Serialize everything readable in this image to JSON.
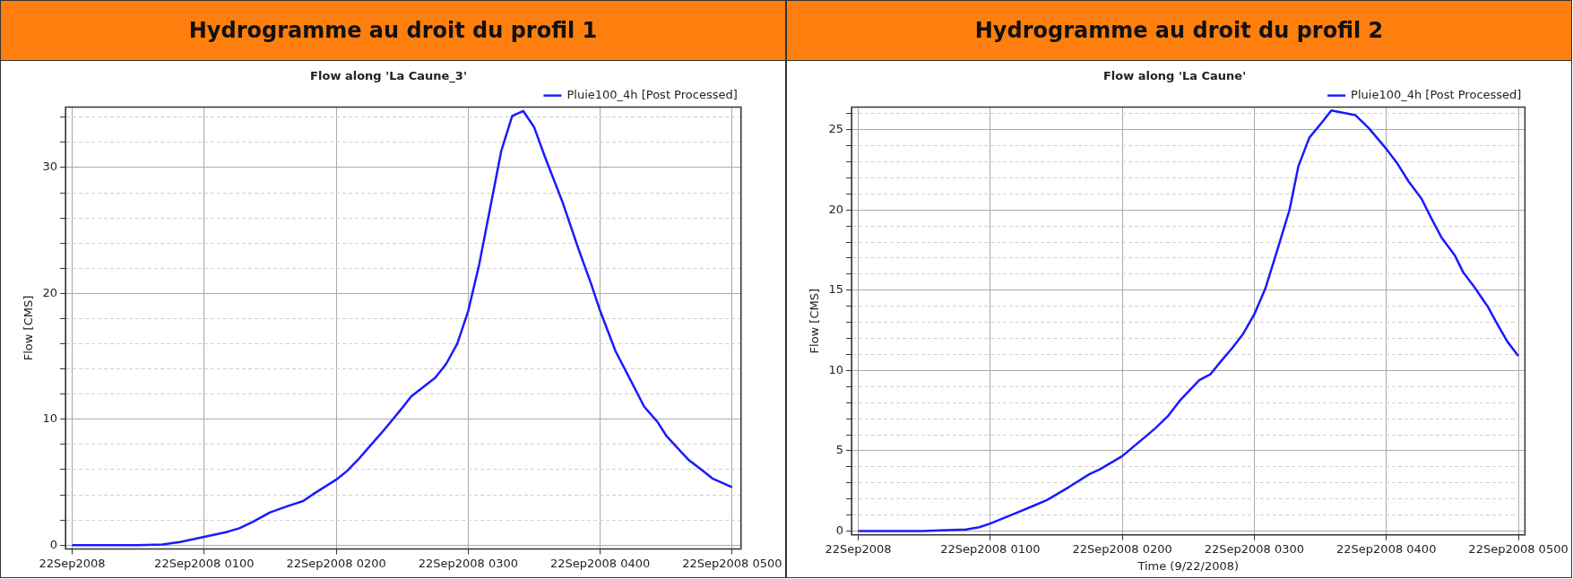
{
  "chart_data": [
    {
      "type": "line",
      "title": "Hydrogramme au droit du profil 1",
      "subtitle": "Flow along 'La Caune_3'",
      "ylabel": "Flow [CMS]",
      "legend": "top right",
      "grid": true,
      "marker": "none",
      "line_style": "solid",
      "xlim": [
        "2008-09-21T23:57",
        "2008-09-22T05:04"
      ],
      "xticks": [
        {
          "value": "2008-09-22T00:00",
          "label": "22Sep2008"
        },
        {
          "value": "2008-09-22T01:00",
          "label": "22Sep2008 0100"
        },
        {
          "value": "2008-09-22T02:00",
          "label": "22Sep2008 0200"
        },
        {
          "value": "2008-09-22T03:00",
          "label": "22Sep2008 0300"
        },
        {
          "value": "2008-09-22T04:00",
          "label": "22Sep2008 0400"
        },
        {
          "value": "2008-09-22T05:00",
          "label": "22Sep2008 0500"
        }
      ],
      "ylim": [
        -0.3,
        34.8
      ],
      "yticks": [
        0,
        {
          "value": 2,
          "label": null
        },
        {
          "value": 4,
          "label": null
        },
        {
          "value": 6,
          "label": null
        },
        {
          "value": 8,
          "label": null
        },
        10,
        {
          "value": 12,
          "label": null
        },
        {
          "value": 14,
          "label": null
        },
        {
          "value": 16,
          "label": null
        },
        {
          "value": 18,
          "label": null
        },
        20,
        {
          "value": 22,
          "label": null
        },
        {
          "value": 24,
          "label": null
        },
        {
          "value": 26,
          "label": null
        },
        {
          "value": 28,
          "label": null
        },
        30,
        {
          "value": 32,
          "label": null
        },
        {
          "value": 34,
          "label": null
        }
      ],
      "series": [
        {
          "name": "Pluie100_4h [Post Processed]",
          "color": "#1a1aff",
          "x": [
            "2008-09-22T00:00",
            "2008-09-22T00:30",
            "2008-09-22T00:41",
            "2008-09-22T00:49",
            "2008-09-22T01:00",
            "2008-09-22T01:10",
            "2008-09-22T01:16",
            "2008-09-22T01:22",
            "2008-09-22T01:30",
            "2008-09-22T01:38",
            "2008-09-22T01:45",
            "2008-09-22T01:50",
            "2008-09-22T02:00",
            "2008-09-22T02:05",
            "2008-09-22T02:10",
            "2008-09-22T02:16",
            "2008-09-22T02:22",
            "2008-09-22T02:30",
            "2008-09-22T02:34",
            "2008-09-22T02:45",
            "2008-09-22T02:50",
            "2008-09-22T02:55",
            "2008-09-22T03:00",
            "2008-09-22T03:05",
            "2008-09-22T03:10",
            "2008-09-22T03:15",
            "2008-09-22T03:20",
            "2008-09-22T03:25",
            "2008-09-22T03:30",
            "2008-09-22T03:35",
            "2008-09-22T03:43",
            "2008-09-22T03:50",
            "2008-09-22T03:56",
            "2008-09-22T04:00",
            "2008-09-22T04:07",
            "2008-09-22T04:15",
            "2008-09-22T04:20",
            "2008-09-22T04:26",
            "2008-09-22T04:30",
            "2008-09-22T04:40",
            "2008-09-22T04:46",
            "2008-09-22T04:51",
            "2008-09-22T05:00"
          ],
          "values": [
            0,
            0,
            0.05,
            0.24,
            0.66,
            1.03,
            1.34,
            1.84,
            2.6,
            3.1,
            3.5,
            4.1,
            5.2,
            5.9,
            6.8,
            8.0,
            9.2,
            10.9,
            11.8,
            13.3,
            14.4,
            16.0,
            18.6,
            22.3,
            26.8,
            31.3,
            34.1,
            34.5,
            33.2,
            30.8,
            27.2,
            23.6,
            20.7,
            18.6,
            15.4,
            12.7,
            11.0,
            9.8,
            8.7,
            6.8,
            6.0,
            5.3,
            4.6
          ]
        }
      ]
    },
    {
      "type": "line",
      "title": "Hydrogramme au droit du profil 2",
      "subtitle": "Flow along 'La Caune'",
      "xlabel": "Time (9/22/2008)",
      "ylabel": "Flow [CMS]",
      "legend": "top right",
      "grid": true,
      "marker": "none",
      "line_style": "solid",
      "xlim": [
        "2008-09-21T23:57",
        "2008-09-22T05:03"
      ],
      "xticks": [
        {
          "value": "2008-09-22T00:00",
          "label": "22Sep2008"
        },
        {
          "value": "2008-09-22T01:00",
          "label": "22Sep2008 0100"
        },
        {
          "value": "2008-09-22T02:00",
          "label": "22Sep2008 0200"
        },
        {
          "value": "2008-09-22T03:00",
          "label": "22Sep2008 0300"
        },
        {
          "value": "2008-09-22T04:00",
          "label": "22Sep2008 0400"
        },
        {
          "value": "2008-09-22T05:00",
          "label": "22Sep2008 0500"
        }
      ],
      "ylim": [
        -0.24,
        26.4
      ],
      "yticks": [
        0,
        {
          "value": 1,
          "label": null
        },
        {
          "value": 2,
          "label": null
        },
        {
          "value": 3,
          "label": null
        },
        {
          "value": 4,
          "label": null
        },
        5,
        {
          "value": 6,
          "label": null
        },
        {
          "value": 7,
          "label": null
        },
        {
          "value": 8,
          "label": null
        },
        {
          "value": 9,
          "label": null
        },
        10,
        {
          "value": 11,
          "label": null
        },
        {
          "value": 12,
          "label": null
        },
        {
          "value": 13,
          "label": null
        },
        {
          "value": 14,
          "label": null
        },
        15,
        {
          "value": 16,
          "label": null
        },
        {
          "value": 17,
          "label": null
        },
        {
          "value": 18,
          "label": null
        },
        {
          "value": 19,
          "label": null
        },
        20,
        {
          "value": 21,
          "label": null
        },
        {
          "value": 22,
          "label": null
        },
        {
          "value": 23,
          "label": null
        },
        {
          "value": 24,
          "label": null
        },
        25,
        {
          "value": 26,
          "label": null
        }
      ],
      "series": [
        {
          "name": "Pluie100_4h [Post Processed]",
          "color": "#1a1aff",
          "x": [
            "2008-09-22T00:00",
            "2008-09-22T00:29",
            "2008-09-22T00:49",
            "2008-09-22T00:55",
            "2008-09-22T01:00",
            "2008-09-22T01:11",
            "2008-09-22T01:20",
            "2008-09-22T01:26",
            "2008-09-22T01:36",
            "2008-09-22T01:45",
            "2008-09-22T01:50",
            "2008-09-22T02:00",
            "2008-09-22T02:09",
            "2008-09-22T02:15",
            "2008-09-22T02:21",
            "2008-09-22T02:26",
            "2008-09-22T02:35",
            "2008-09-22T02:40",
            "2008-09-22T02:45",
            "2008-09-22T02:50",
            "2008-09-22T02:55",
            "2008-09-22T03:00",
            "2008-09-22T03:05",
            "2008-09-22T03:10",
            "2008-09-22T03:16",
            "2008-09-22T03:20",
            "2008-09-22T03:25",
            "2008-09-22T03:31",
            "2008-09-22T03:35",
            "2008-09-22T03:46",
            "2008-09-22T03:52",
            "2008-09-22T04:00",
            "2008-09-22T04:05",
            "2008-09-22T04:10",
            "2008-09-22T04:16",
            "2008-09-22T04:20",
            "2008-09-22T04:25",
            "2008-09-22T04:31",
            "2008-09-22T04:35",
            "2008-09-22T04:40",
            "2008-09-22T04:46",
            "2008-09-22T04:50",
            "2008-09-22T04:55",
            "2008-09-22T05:00"
          ],
          "values": [
            0,
            0,
            0.1,
            0.24,
            0.47,
            1.08,
            1.59,
            1.95,
            2.76,
            3.54,
            3.86,
            4.67,
            5.7,
            6.4,
            7.2,
            8.1,
            9.4,
            9.76,
            10.6,
            11.4,
            12.3,
            13.5,
            15.1,
            17.3,
            20.0,
            22.7,
            24.5,
            25.5,
            26.2,
            25.9,
            25.1,
            23.8,
            22.9,
            21.8,
            20.7,
            19.6,
            18.3,
            17.2,
            16.1,
            15.2,
            14.0,
            13.0,
            11.8,
            10.9
          ]
        }
      ]
    }
  ]
}
